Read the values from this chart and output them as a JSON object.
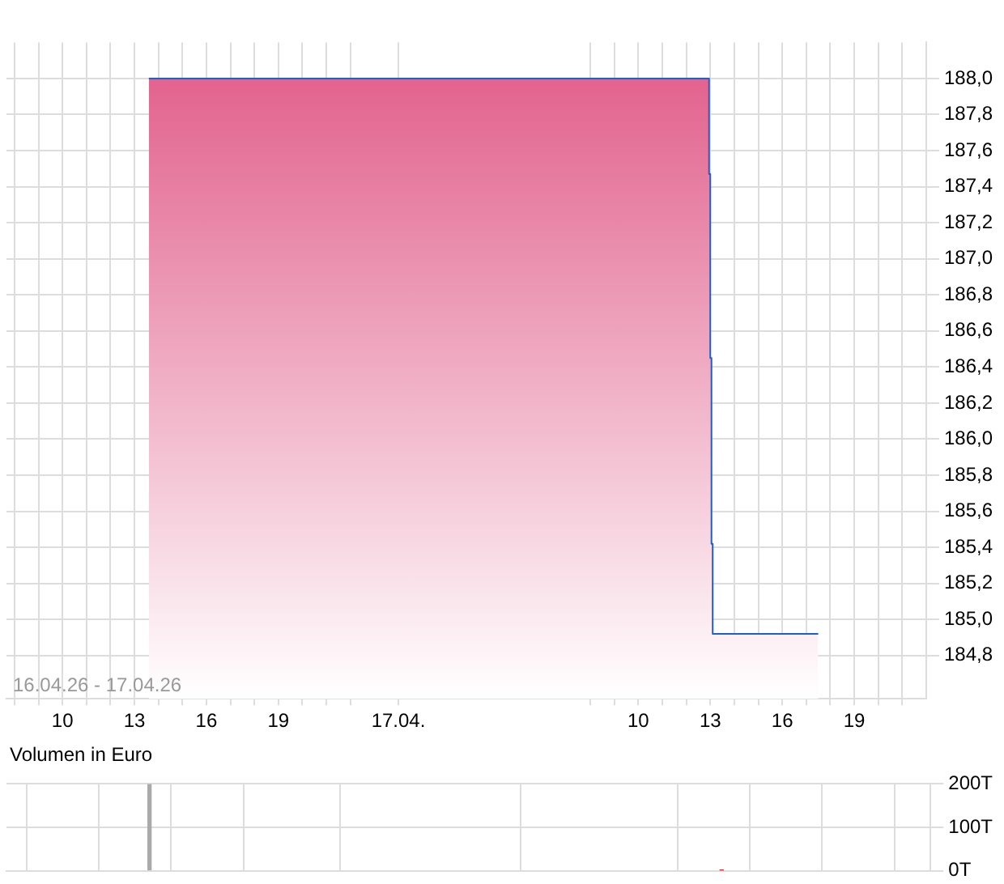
{
  "chart_data": [
    {
      "type": "area",
      "x": [
        "--04-16T13:36",
        "--04-17T12:57",
        "--04-17T12:57",
        "--04-17T13:00",
        "--04-17T13:00",
        "--04-17T13:03",
        "--04-17T13:03",
        "--04-17T13:06",
        "--04-17T13:06",
        "--04-17T17:30"
      ],
      "series": [
        {
          "color": "#e05a88",
          "values": [
            188.0,
            188.0,
            187.47,
            187.47,
            186.45,
            186.45,
            185.42,
            185.42,
            184.92,
            184.92
          ]
        }
      ],
      "xlim": [
        "--04-16T07:40",
        "--04-17T22:00"
      ],
      "xticks": [
        {
          "value": "--04-16T08:00",
          "label": null
        },
        {
          "value": "--04-16T09:00",
          "label": null
        },
        {
          "value": "--04-16T10:00",
          "label": "10"
        },
        {
          "value": "--04-16T11:00",
          "label": null
        },
        {
          "value": "--04-16T12:00",
          "label": null
        },
        {
          "value": "--04-16T13:00",
          "label": "13"
        },
        {
          "value": "--04-16T14:00",
          "label": null
        },
        {
          "value": "--04-16T15:00",
          "label": null
        },
        {
          "value": "--04-16T16:00",
          "label": "16"
        },
        {
          "value": "--04-16T17:00",
          "label": null
        },
        {
          "value": "--04-16T18:00",
          "label": null
        },
        {
          "value": "--04-16T19:00",
          "label": "19"
        },
        {
          "value": "--04-16T20:00",
          "label": null
        },
        {
          "value": "--04-16T21:00",
          "label": null
        },
        {
          "value": "--04-16T22:00",
          "label": null
        },
        {
          "value": "--04-17T00:00",
          "label": "17.04."
        },
        {
          "value": "--04-17T08:00",
          "label": null
        },
        {
          "value": "--04-17T09:00",
          "label": null
        },
        {
          "value": "--04-17T10:00",
          "label": "10"
        },
        {
          "value": "--04-17T11:00",
          "label": null
        },
        {
          "value": "--04-17T12:00",
          "label": null
        },
        {
          "value": "--04-17T13:00",
          "label": "13"
        },
        {
          "value": "--04-17T14:00",
          "label": null
        },
        {
          "value": "--04-17T15:00",
          "label": null
        },
        {
          "value": "--04-17T16:00",
          "label": "16"
        },
        {
          "value": "--04-17T17:00",
          "label": null
        },
        {
          "value": "--04-17T18:00",
          "label": null
        },
        {
          "value": "--04-17T19:00",
          "label": "19"
        },
        {
          "value": "--04-17T20:00",
          "label": null
        },
        {
          "value": "--04-17T21:00",
          "label": null
        }
      ],
      "ylim": [
        184.56,
        188.2
      ],
      "yticks": [
        {
          "value": 184.8,
          "label": "184,8"
        },
        {
          "value": 185.0,
          "label": "185,0"
        },
        {
          "value": 185.2,
          "label": "185,2"
        },
        {
          "value": 185.4,
          "label": "185,4"
        },
        {
          "value": 185.6,
          "label": "185,6"
        },
        {
          "value": 185.8,
          "label": "185,8"
        },
        {
          "value": 186.0,
          "label": "186,0"
        },
        {
          "value": 186.2,
          "label": "186,2"
        },
        {
          "value": 186.4,
          "label": "186,4"
        },
        {
          "value": 186.6,
          "label": "186,6"
        },
        {
          "value": 186.8,
          "label": "186,8"
        },
        {
          "value": 187.0,
          "label": "187,0"
        },
        {
          "value": 187.2,
          "label": "187,2"
        },
        {
          "value": 187.4,
          "label": "187,4"
        },
        {
          "value": 187.6,
          "label": "187,6"
        },
        {
          "value": 187.8,
          "label": "187,8"
        },
        {
          "value": 188.0,
          "label": "188,0"
        }
      ],
      "annotations": [
        "16.04.26 - 17.04.26"
      ],
      "grid": true
    },
    {
      "type": "bar",
      "title": "Volumen in Euro",
      "x": [
        "--04-16T13:36",
        "--04-17T13:20"
      ],
      "values": [
        200,
        1
      ],
      "colors": [
        "#aaaaaa",
        "#e03030"
      ],
      "xlim": [
        "--04-16T07:40",
        "--04-17T22:00"
      ],
      "xticks": [
        {
          "value": "--04-16T10:00",
          "label": null
        },
        {
          "value": "--04-16T13:00",
          "label": null
        },
        {
          "value": "--04-16T16:00",
          "label": null
        },
        {
          "value": "--04-16T19:00",
          "label": null
        },
        {
          "value": "--04-17T00:00",
          "label": null
        },
        {
          "value": "--04-17T10:00",
          "label": null
        },
        {
          "value": "--04-17T13:00",
          "label": null
        },
        {
          "value": "--04-17T16:00",
          "label": null
        },
        {
          "value": "--04-17T19:00",
          "label": null
        }
      ],
      "ylim": [
        0,
        200
      ],
      "yticks": [
        {
          "value": 0,
          "label": "0T"
        },
        {
          "value": 100,
          "label": "100T"
        },
        {
          "value": 200,
          "label": "200T"
        }
      ],
      "tick_labels": "y",
      "grid": true
    }
  ]
}
